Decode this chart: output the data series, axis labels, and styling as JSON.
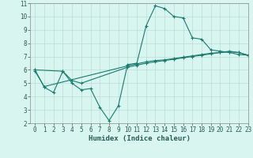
{
  "line1_x": [
    0,
    1,
    2,
    3,
    4,
    5,
    6,
    7,
    8,
    9,
    10,
    11,
    12,
    13,
    14,
    15,
    16,
    17,
    18,
    19,
    20,
    21,
    22,
    23
  ],
  "line1_y": [
    6.0,
    4.7,
    4.3,
    5.9,
    5.0,
    4.5,
    4.6,
    3.2,
    2.2,
    3.3,
    6.4,
    6.5,
    9.3,
    10.8,
    10.6,
    10.0,
    9.9,
    8.4,
    8.3,
    7.5,
    7.4,
    7.3,
    7.15,
    7.1
  ],
  "line2_x": [
    0,
    3,
    4,
    5,
    10,
    11,
    12,
    13,
    14,
    15,
    16,
    17,
    18,
    19,
    20,
    21,
    22,
    23
  ],
  "line2_y": [
    6.0,
    5.9,
    5.2,
    5.0,
    6.2,
    6.35,
    6.5,
    6.6,
    6.7,
    6.8,
    6.9,
    7.0,
    7.1,
    7.2,
    7.3,
    7.4,
    7.3,
    7.1
  ],
  "line3_x": [
    0,
    1,
    10,
    11,
    12,
    13,
    14,
    15,
    16,
    17,
    18,
    19,
    20,
    21,
    22,
    23
  ],
  "line3_y": [
    5.9,
    4.75,
    6.3,
    6.45,
    6.6,
    6.7,
    6.75,
    6.85,
    6.95,
    7.05,
    7.15,
    7.25,
    7.3,
    7.35,
    7.3,
    7.1
  ],
  "color": "#1a7a6e",
  "bg_color": "#d8f5f0",
  "grid_color": "#b8deda",
  "xlabel": "Humidex (Indice chaleur)",
  "xlim": [
    -0.5,
    23
  ],
  "ylim": [
    2,
    11
  ],
  "xticks": [
    0,
    1,
    2,
    3,
    4,
    5,
    6,
    7,
    8,
    9,
    10,
    11,
    12,
    13,
    14,
    15,
    16,
    17,
    18,
    19,
    20,
    21,
    22,
    23
  ],
  "yticks": [
    2,
    3,
    4,
    5,
    6,
    7,
    8,
    9,
    10,
    11
  ],
  "tick_fontsize": 5.5,
  "xlabel_fontsize": 6.5
}
